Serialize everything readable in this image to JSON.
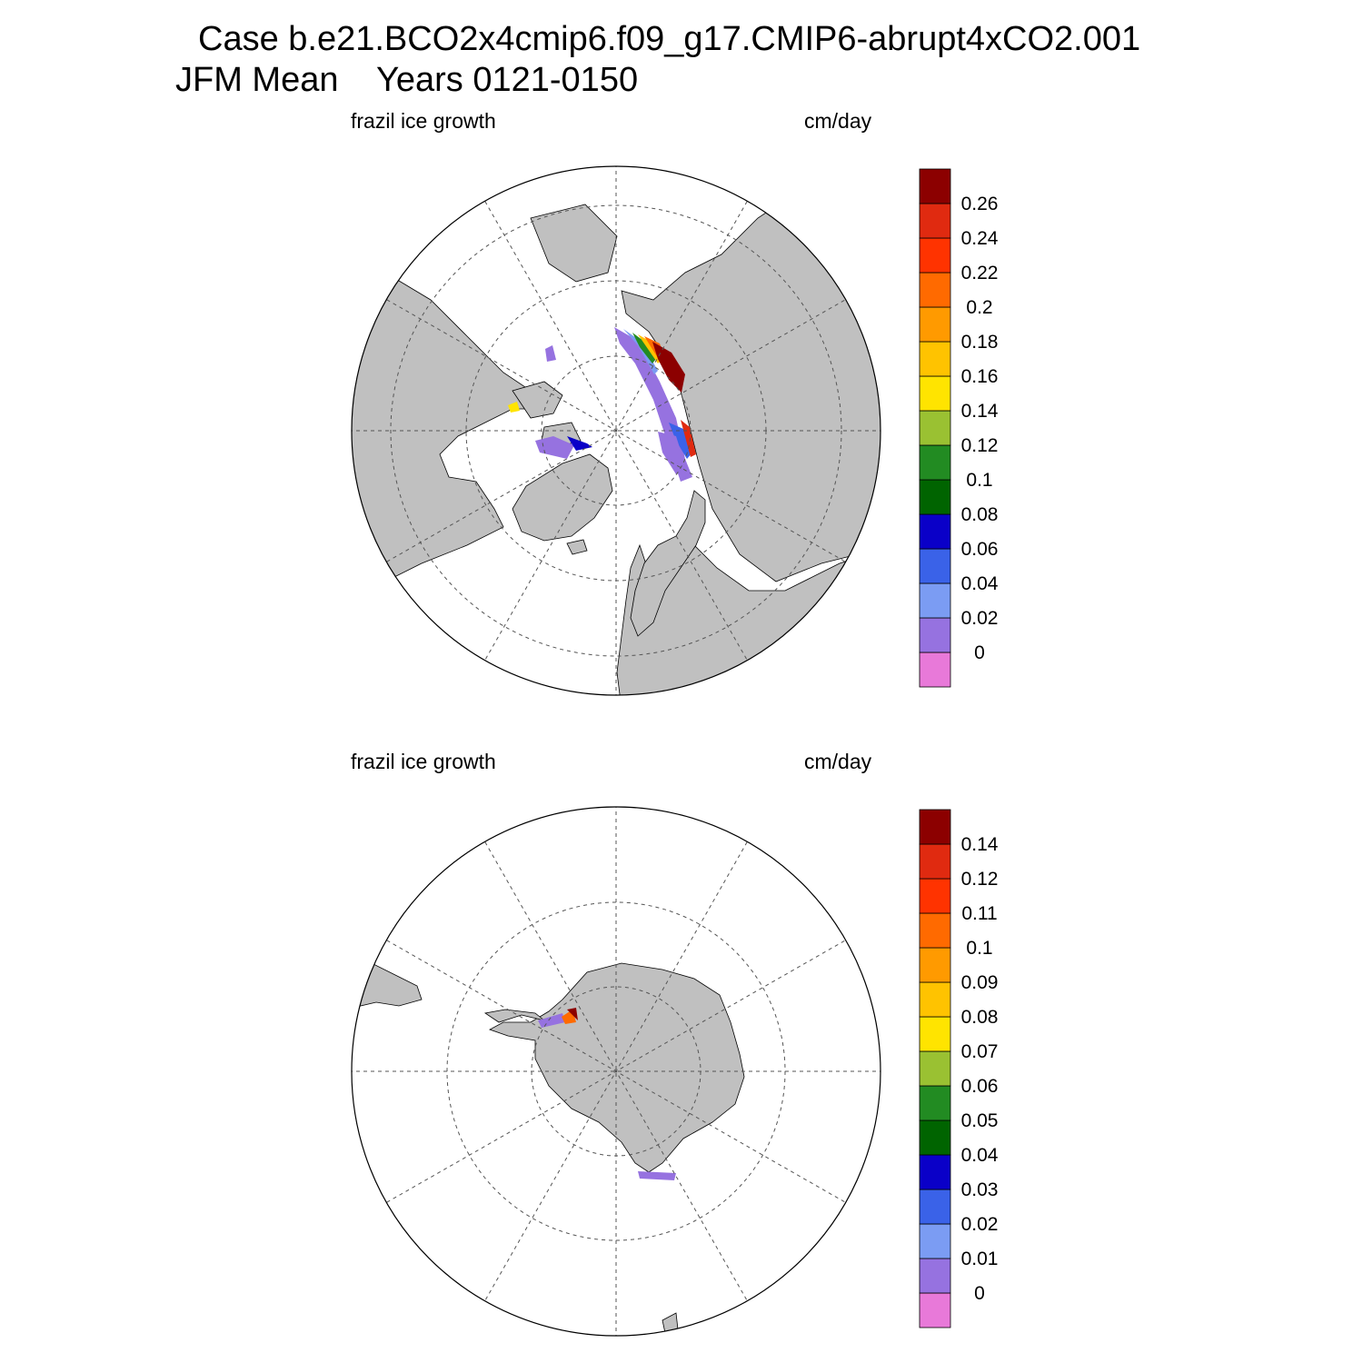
{
  "title": {
    "line1": "Case b.e21.BCO2x4cmip6.f09_g17.CMIP6-abrupt4xCO2.001",
    "line2": "JFM Mean    Years 0121-0150"
  },
  "colors": {
    "land": "#c0c0c0",
    "ocean": "#ffffff",
    "scale": [
      "#e879d9",
      "#9672e0",
      "#7b9cf3",
      "#3a62e8",
      "#0a00c8",
      "#006400",
      "#228b22",
      "#9ac132",
      "#ffe400",
      "#ffc300",
      "#ff9a00",
      "#ff6a00",
      "#ff3300",
      "#e02a10",
      "#8c0000"
    ]
  },
  "panels": [
    {
      "id": "north",
      "hemisphere": "Northern Hemisphere",
      "left_label": "frazil ice growth",
      "right_label": "cm/day",
      "colorbar_labels": [
        "0",
        "0.02",
        "0.04",
        "0.06",
        "0.08",
        "0.1",
        "0.12",
        "0.14",
        "0.16",
        "0.18",
        "0.2",
        "0.22",
        "0.24",
        "0.26"
      ]
    },
    {
      "id": "south",
      "hemisphere": "Southern Hemisphere",
      "left_label": "frazil ice growth",
      "right_label": "cm/day",
      "colorbar_labels": [
        "0",
        "0.01",
        "0.02",
        "0.03",
        "0.04",
        "0.05",
        "0.06",
        "0.07",
        "0.08",
        "0.09",
        "0.1",
        "0.11",
        "0.12",
        "0.14"
      ]
    }
  ]
}
